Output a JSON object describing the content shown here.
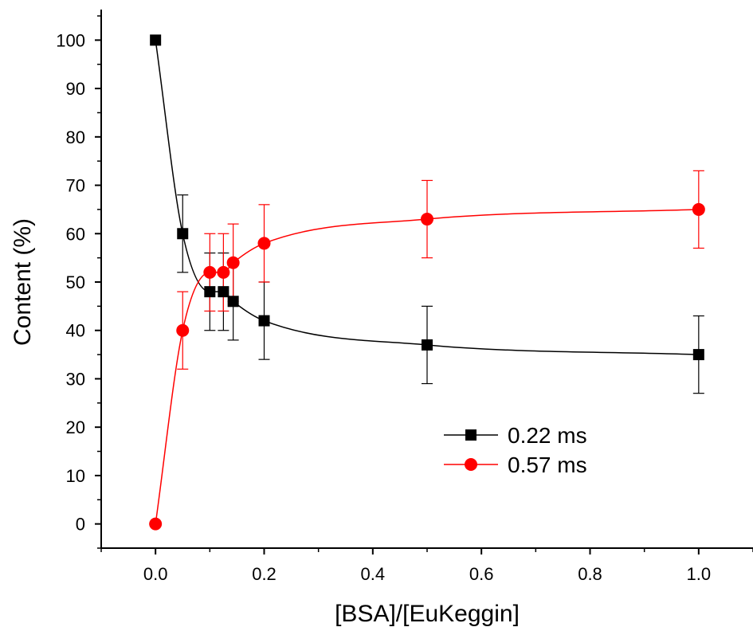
{
  "chart_data": {
    "type": "scatter",
    "title": "",
    "xlabel": "[BSA]/[EuKeggin]",
    "ylabel": "Content (%)",
    "xlim": [
      -0.1,
      1.1
    ],
    "ylim": [
      -5,
      105
    ],
    "x_ticks": [
      0.0,
      0.2,
      0.4,
      0.6,
      0.8,
      1.0
    ],
    "x_tick_labels": [
      "0.0",
      "0.2",
      "0.4",
      "0.6",
      "0.8",
      "1.0"
    ],
    "y_ticks": [
      0,
      10,
      20,
      30,
      40,
      50,
      60,
      70,
      80,
      90,
      100
    ],
    "y_tick_labels": [
      "0",
      "10",
      "20",
      "30",
      "40",
      "50",
      "60",
      "70",
      "80",
      "90",
      "100"
    ],
    "grid": false,
    "legend_position": "center-right",
    "x": [
      0.0,
      0.05,
      0.1,
      0.125,
      0.143,
      0.2,
      0.5,
      1.0
    ],
    "series": [
      {
        "name": "0.22 ms",
        "color": "#000000",
        "marker": "square",
        "values": [
          100,
          60,
          48,
          48,
          46,
          42,
          37,
          35
        ],
        "error": [
          0,
          8,
          8,
          8,
          8,
          8,
          8,
          8
        ]
      },
      {
        "name": "0.57 ms",
        "color": "#ff0000",
        "marker": "circle",
        "values": [
          0,
          40,
          52,
          52,
          54,
          58,
          63,
          65
        ],
        "error": [
          0,
          8,
          8,
          8,
          8,
          8,
          8,
          8
        ]
      }
    ]
  }
}
